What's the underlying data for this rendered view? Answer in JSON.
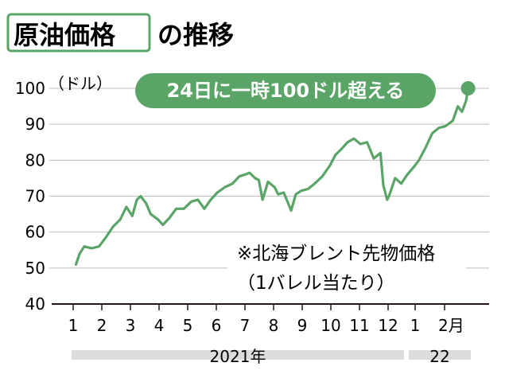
{
  "title": {
    "boxed_text": "原油価格",
    "rest_text": "の推移",
    "box_color": "#5aa468"
  },
  "callout": {
    "text": "24日に一時100ドル超える",
    "color": "#5aa468"
  },
  "note": {
    "line1": "※北海ブレント先物価格",
    "line2": "（1バレル当たり）"
  },
  "x_axis": {
    "month_labels": [
      "1",
      "2",
      "3",
      "4",
      "5",
      "6",
      "7",
      "8",
      "9",
      "10",
      "11",
      "12",
      "1",
      "2月"
    ],
    "year_labels": [
      "2021年",
      "22"
    ]
  },
  "chart_data": {
    "type": "line",
    "title": "原油価格の推移",
    "xlabel": "",
    "ylabel": "",
    "y_unit": "（ドル）",
    "ylim": [
      40,
      100
    ],
    "y_ticks": [
      40,
      50,
      60,
      70,
      80,
      90,
      100
    ],
    "grid": true,
    "line_color": "#5aa468",
    "series": [
      {
        "x": [
          "2021-01-04",
          "2021-01-08",
          "2021-01-13",
          "2021-01-21",
          "2021-01-29",
          "2021-02-05",
          "2021-02-12",
          "2021-02-19",
          "2021-02-25",
          "2021-03-03",
          "2021-03-08",
          "2021-03-12",
          "2021-03-18",
          "2021-03-23",
          "2021-03-31",
          "2021-04-05",
          "2021-04-12",
          "2021-04-19",
          "2021-04-27",
          "2021-05-05",
          "2021-05-12",
          "2021-05-19",
          "2021-05-26",
          "2021-06-02",
          "2021-06-10",
          "2021-06-18",
          "2021-06-25",
          "2021-07-01",
          "2021-07-06",
          "2021-07-12",
          "2021-07-16",
          "2021-07-20",
          "2021-07-26",
          "2021-08-02",
          "2021-08-06",
          "2021-08-12",
          "2021-08-20",
          "2021-08-25",
          "2021-08-31",
          "2021-09-07",
          "2021-09-14",
          "2021-09-22",
          "2021-09-30",
          "2021-10-06",
          "2021-10-12",
          "2021-10-19",
          "2021-10-26",
          "2021-11-02",
          "2021-11-09",
          "2021-11-16",
          "2021-11-23",
          "2021-11-26",
          "2021-11-30",
          "2021-12-02",
          "2021-12-09",
          "2021-12-16",
          "2021-12-23",
          "2021-12-30",
          "2022-01-05",
          "2022-01-12",
          "2022-01-19",
          "2022-01-26",
          "2022-02-02",
          "2022-02-09",
          "2022-02-14",
          "2022-02-18",
          "2022-02-22",
          "2022-02-24"
        ],
        "values": [
          51,
          54,
          56,
          55.5,
          56,
          58.5,
          61.5,
          63.5,
          67,
          64.5,
          69,
          70,
          68,
          65,
          63.5,
          62,
          64,
          66.5,
          66.5,
          68.5,
          69,
          66.5,
          69,
          71,
          72.5,
          73.5,
          75.5,
          76,
          76.5,
          75,
          74.5,
          69,
          74,
          72.5,
          70.5,
          71,
          66,
          70.5,
          71.5,
          72,
          73.5,
          75.5,
          78.5,
          81.5,
          83,
          85,
          86,
          84.5,
          85,
          80.5,
          82,
          73,
          69,
          70,
          75,
          73.5,
          76,
          78,
          80,
          83.5,
          87.5,
          89,
          89.5,
          91,
          95,
          93.5,
          96.5,
          100
        ]
      }
    ]
  }
}
